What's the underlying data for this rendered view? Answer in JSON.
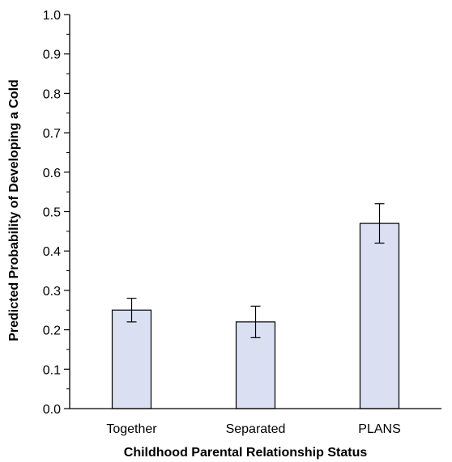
{
  "chart_data": {
    "type": "bar",
    "categories": [
      "Together",
      "Separated",
      "PLANS"
    ],
    "values": [
      0.25,
      0.22,
      0.47
    ],
    "error_low": [
      0.22,
      0.18,
      0.42
    ],
    "error_high": [
      0.28,
      0.26,
      0.52
    ],
    "xlabel": "Childhood Parental Relationship Status",
    "ylabel": "Predicted Probability of Developing a Cold",
    "ylim": [
      0,
      1.0
    ],
    "yticks": [
      "0.0",
      "0.1",
      "0.2",
      "0.3",
      "0.4",
      "0.5",
      "0.6",
      "0.7",
      "0.8",
      "0.9",
      "1.0"
    ],
    "grid": false,
    "legend": "none",
    "bar_color": "#dae0f2",
    "bar_edge_color": "#000000"
  }
}
